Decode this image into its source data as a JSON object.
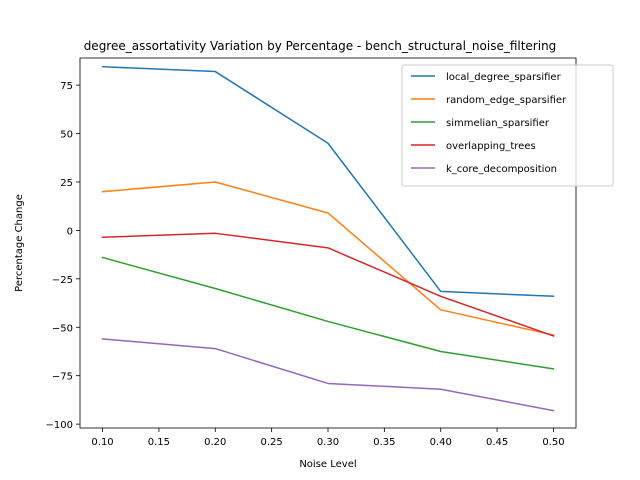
{
  "chart_data": {
    "type": "line",
    "title": "degree_assortativity Variation by Percentage - bench_structural_noise_filtering",
    "xlabel": "Noise Level",
    "ylabel": "Percentage Change",
    "x": [
      0.1,
      0.2,
      0.3,
      0.4,
      0.5
    ],
    "xlim": [
      0.08,
      0.52
    ],
    "ylim": [
      -102,
      89
    ],
    "xticks": [
      0.1,
      0.15,
      0.2,
      0.25,
      0.3,
      0.35,
      0.4,
      0.45,
      0.5
    ],
    "xtick_labels": [
      "0.10",
      "0.15",
      "0.20",
      "0.25",
      "0.30",
      "0.35",
      "0.40",
      "0.45",
      "0.50"
    ],
    "yticks": [
      -100,
      -75,
      -50,
      -25,
      0,
      25,
      50,
      75
    ],
    "ytick_labels": [
      "−100",
      "−75",
      "−50",
      "−25",
      "0",
      "25",
      "50",
      "75"
    ],
    "grid": false,
    "legend_position": "top-right",
    "series": [
      {
        "name": "local_degree_sparsifier",
        "color": "#1f77b4",
        "values": [
          84.5,
          82.0,
          45.0,
          -31.5,
          -34.0
        ]
      },
      {
        "name": "random_edge_sparsifier",
        "color": "#ff7f0e",
        "values": [
          20.0,
          25.0,
          9.0,
          -41.0,
          -54.0
        ]
      },
      {
        "name": "simmelian_sparsifier",
        "color": "#2ca02c",
        "values": [
          -14.0,
          -30.0,
          -47.0,
          -62.5,
          -71.5
        ]
      },
      {
        "name": "overlapping_trees",
        "color": "#d62728",
        "values": [
          -3.5,
          -1.5,
          -9.0,
          -34.0,
          -54.5
        ]
      },
      {
        "name": "k_core_decomposition",
        "color": "#9467bd",
        "values": [
          -56.0,
          -61.0,
          -79.0,
          -82.0,
          -93.0
        ]
      }
    ]
  }
}
